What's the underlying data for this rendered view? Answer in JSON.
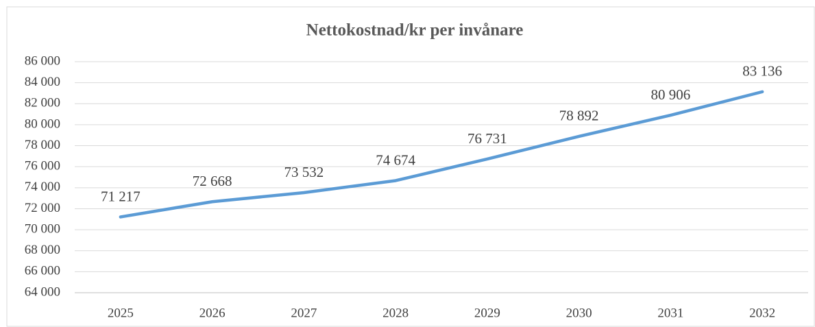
{
  "chart_data": {
    "type": "line",
    "title": "Nettokostnad/kr per invånare",
    "categories": [
      "2025",
      "2026",
      "2027",
      "2028",
      "2029",
      "2030",
      "2031",
      "2032"
    ],
    "series": [
      {
        "name": "Nettokostnad/kr per invånare",
        "color": "#5b9bd5",
        "values": [
          71217,
          72668,
          73532,
          74674,
          76731,
          78892,
          80906,
          83136
        ],
        "value_labels": [
          "71 217",
          "72 668",
          "73 532",
          "74 674",
          "76 731",
          "78 892",
          "80 906",
          "83 136"
        ]
      }
    ],
    "ylim": [
      64000,
      86000
    ],
    "yticks": [
      {
        "value": 64000,
        "label": "64 000"
      },
      {
        "value": 66000,
        "label": "66 000"
      },
      {
        "value": 68000,
        "label": "68 000"
      },
      {
        "value": 70000,
        "label": "70 000"
      },
      {
        "value": 72000,
        "label": "72 000"
      },
      {
        "value": 74000,
        "label": "74 000"
      },
      {
        "value": 76000,
        "label": "76 000"
      },
      {
        "value": 78000,
        "label": "78 000"
      },
      {
        "value": 80000,
        "label": "80 000"
      },
      {
        "value": 82000,
        "label": "82 000"
      },
      {
        "value": 84000,
        "label": "84 000"
      },
      {
        "value": 86000,
        "label": "86 000"
      }
    ],
    "grid": true
  }
}
